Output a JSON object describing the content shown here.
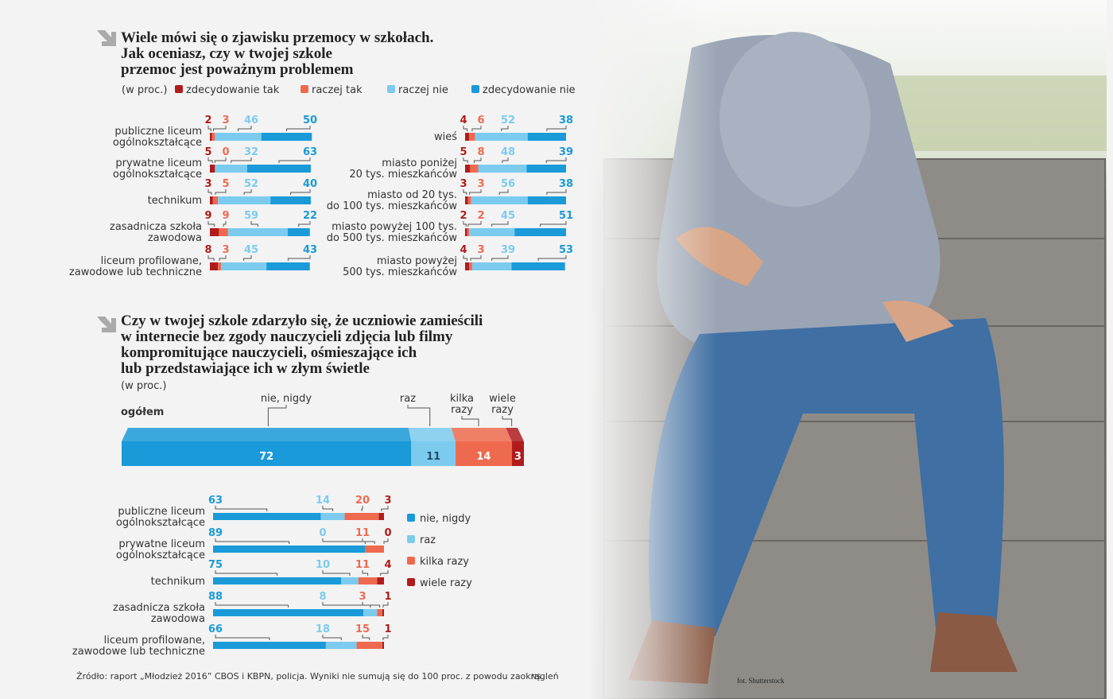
{
  "chart_data": [
    {
      "type": "bar",
      "orientation": "horizontal",
      "stacked": true,
      "title": "Wiele mówi się o zjawisku przemocy w szkołach.\nJak oceniasz, czy w twojej szkole\nprzemoc jest poważnym problemem",
      "unit": "(w proc.)",
      "categories": [
        "publiczne liceum\nogólnokształcące",
        "prywatne liceum\nogólnokształcące",
        "technikum",
        "zasadnicza szkoła\nzawodowa",
        "liceum profilowane,\nzawodowe lub techniczne"
      ],
      "series": [
        {
          "name": "zdecydowanie tak",
          "color": "#b01c1c",
          "values": [
            2,
            5,
            3,
            9,
            8
          ]
        },
        {
          "name": "raczej tak",
          "color": "#ee6a4f",
          "values": [
            3,
            0,
            5,
            9,
            3
          ]
        },
        {
          "name": "raczej nie",
          "color": "#7ccbef",
          "values": [
            46,
            32,
            52,
            59,
            45
          ]
        },
        {
          "name": "zdecydowanie nie",
          "color": "#1a9ad8",
          "values": [
            50,
            63,
            40,
            22,
            43
          ]
        }
      ],
      "xlim": [
        0,
        100
      ]
    },
    {
      "type": "bar",
      "orientation": "horizontal",
      "stacked": true,
      "categories": [
        "wieś",
        "miasto poniżej\n20 tys. mieszkańców",
        "miasto od 20 tys.\ndo 100 tys. mieszkańców",
        "miasto powyżej 100 tys.\ndo 500 tys. mieszkańców",
        "miasto powyżej\n500 tys. mieszkańców"
      ],
      "series": [
        {
          "color": "#b01c1c",
          "values": [
            4,
            5,
            3,
            2,
            4
          ]
        },
        {
          "color": "#ee6a4f",
          "values": [
            6,
            8,
            3,
            2,
            3
          ]
        },
        {
          "color": "#7ccbef",
          "values": [
            52,
            48,
            56,
            45,
            39
          ]
        },
        {
          "color": "#1a9ad8",
          "values": [
            38,
            39,
            38,
            51,
            53
          ]
        }
      ],
      "xlim": [
        0,
        100
      ]
    },
    {
      "type": "bar3d",
      "orientation": "horizontal",
      "stacked": true,
      "title": "Czy w twojej szkole zdarzyło się, że uczniowie zamieścili\nw internecie bez zgody nauczycieli zdjęcia lub filmy\nkompromitujące nauczycieli, ośmieszające ich\nlub przedstawiające ich w złym świetle",
      "unit": "(w proc.)",
      "categories": [
        "ogółem"
      ],
      "series": [
        {
          "name": "nie, nigdy",
          "color": "#1a9ad8",
          "values": [
            72
          ]
        },
        {
          "name": "raz",
          "color": "#7ccbef",
          "values": [
            11
          ]
        },
        {
          "name": "kilka\nrazy",
          "color": "#ee6a4f",
          "values": [
            14
          ]
        },
        {
          "name": "wiele\nrazy",
          "color": "#b01c1c",
          "values": [
            3
          ]
        }
      ],
      "xlim": [
        0,
        100
      ]
    },
    {
      "type": "bar",
      "orientation": "horizontal",
      "stacked": true,
      "categories": [
        "publiczne liceum\nogólnokształcące",
        "prywatne liceum\nogólnokształcące",
        "technikum",
        "zasadnicza szkoła\nzawodowa",
        "liceum profilowane,\nzawodowe lub techniczne"
      ],
      "series": [
        {
          "name": "nie, nigdy",
          "color": "#1a9ad8",
          "values": [
            63,
            89,
            75,
            88,
            66
          ]
        },
        {
          "name": "raz",
          "color": "#7ccbef",
          "values": [
            14,
            0,
            10,
            8,
            18
          ]
        },
        {
          "name": "kilka razy",
          "color": "#ee6a4f",
          "values": [
            20,
            11,
            11,
            3,
            15
          ]
        },
        {
          "name": "wiele razy",
          "color": "#b01c1c",
          "values": [
            3,
            0,
            4,
            1,
            1
          ]
        }
      ],
      "xlim": [
        0,
        100
      ]
    }
  ],
  "source": "Źródło: raport „Młodzież 2016” CBOS i KBPN, policja. Wyniki nie sumują się do 100 proc. z powodu zaokrągleń",
  "author": "NS",
  "photo_credit": "fot. Shutterstock"
}
